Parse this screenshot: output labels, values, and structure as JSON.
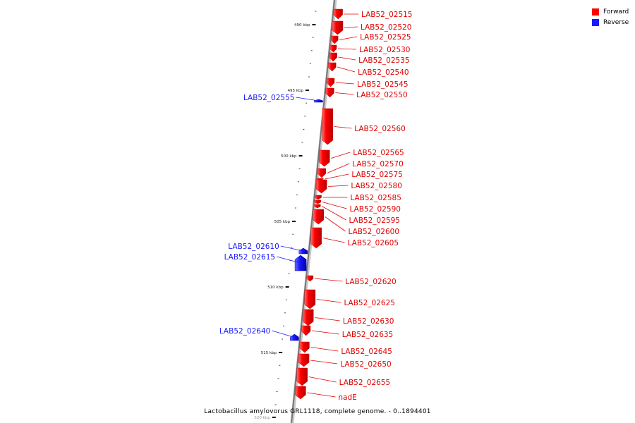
{
  "legend": {
    "forward": {
      "label": "Forward",
      "color": "#ff0000"
    },
    "reverse": {
      "label": "Reverse",
      "color": "#1a1aff"
    }
  },
  "caption": "Lactobacillus amylovorus GRL1118, complete genome. - 0..1894401",
  "ticks": [
    {
      "kbp": 490,
      "label": "490 kbp"
    },
    {
      "kbp": 495,
      "label": "495 kbp"
    },
    {
      "kbp": 500,
      "label": "500 kbp"
    },
    {
      "kbp": 505,
      "label": "505 kbp"
    },
    {
      "kbp": 510,
      "label": "510 kbp"
    },
    {
      "kbp": 515,
      "label": "515 kbp"
    },
    {
      "kbp": 520,
      "label": "520 kbp"
    }
  ],
  "genes": [
    {
      "name": "LAB52_02515",
      "strand": "forward"
    },
    {
      "name": "LAB52_02520",
      "strand": "forward"
    },
    {
      "name": "LAB52_02525",
      "strand": "forward"
    },
    {
      "name": "LAB52_02530",
      "strand": "forward"
    },
    {
      "name": "LAB52_02535",
      "strand": "forward"
    },
    {
      "name": "LAB52_02540",
      "strand": "forward"
    },
    {
      "name": "LAB52_02545",
      "strand": "forward"
    },
    {
      "name": "LAB52_02550",
      "strand": "forward"
    },
    {
      "name": "LAB52_02555",
      "strand": "reverse"
    },
    {
      "name": "LAB52_02560",
      "strand": "forward"
    },
    {
      "name": "LAB52_02565",
      "strand": "forward"
    },
    {
      "name": "LAB52_02570",
      "strand": "forward"
    },
    {
      "name": "LAB52_02575",
      "strand": "forward"
    },
    {
      "name": "LAB52_02580",
      "strand": "forward"
    },
    {
      "name": "LAB52_02585",
      "strand": "forward"
    },
    {
      "name": "LAB52_02590",
      "strand": "forward"
    },
    {
      "name": "LAB52_02595",
      "strand": "forward"
    },
    {
      "name": "LAB52_02600",
      "strand": "forward"
    },
    {
      "name": "LAB52_02605",
      "strand": "forward"
    },
    {
      "name": "LAB52_02610",
      "strand": "reverse"
    },
    {
      "name": "LAB52_02615",
      "strand": "reverse"
    },
    {
      "name": "LAB52_02620",
      "strand": "forward"
    },
    {
      "name": "LAB52_02625",
      "strand": "forward"
    },
    {
      "name": "LAB52_02630",
      "strand": "forward"
    },
    {
      "name": "LAB52_02635",
      "strand": "forward"
    },
    {
      "name": "LAB52_02640",
      "strand": "reverse"
    },
    {
      "name": "LAB52_02645",
      "strand": "forward"
    },
    {
      "name": "LAB52_02650",
      "strand": "forward"
    },
    {
      "name": "LAB52_02655",
      "strand": "forward"
    },
    {
      "name": "nadE",
      "strand": "forward"
    }
  ]
}
